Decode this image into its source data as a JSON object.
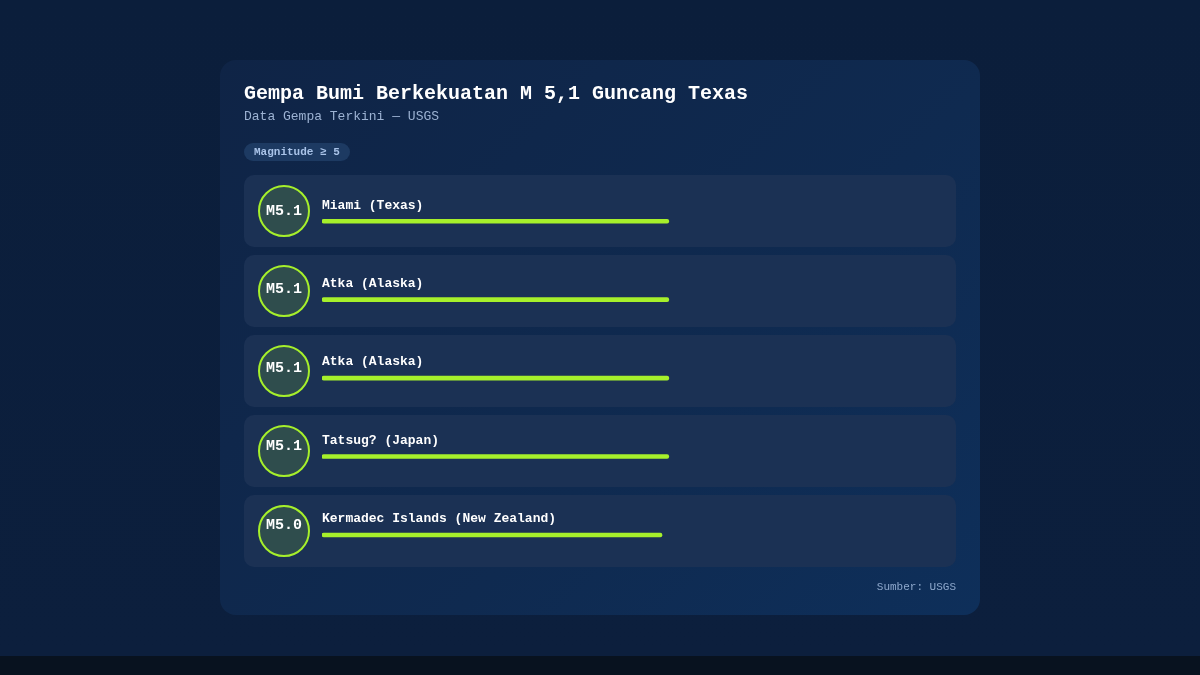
{
  "chart_data": {
    "type": "bar",
    "orientation": "horizontal",
    "title": "Gempa Bumi Berkekuatan M 5,1 Guncang Texas",
    "subtitle": "Data Gempa Terkini — USGS",
    "categories": [
      "Miami (Texas)",
      "Atka (Alaska)",
      "Atka (Alaska)",
      "Tatsug? (Japan)",
      "Kermadec Islands (New Zealand)"
    ],
    "values": [
      5.1,
      5.1,
      5.1,
      5.1,
      5.0
    ],
    "value_labels": [
      "M5.1",
      "M5.1",
      "M5.1",
      "M5.1",
      "M5.0"
    ],
    "color": "#a6f02b",
    "tick_labels": "y",
    "annotations": [
      "Magnitude ≥ 5",
      "Sumber: USGS"
    ]
  }
}
